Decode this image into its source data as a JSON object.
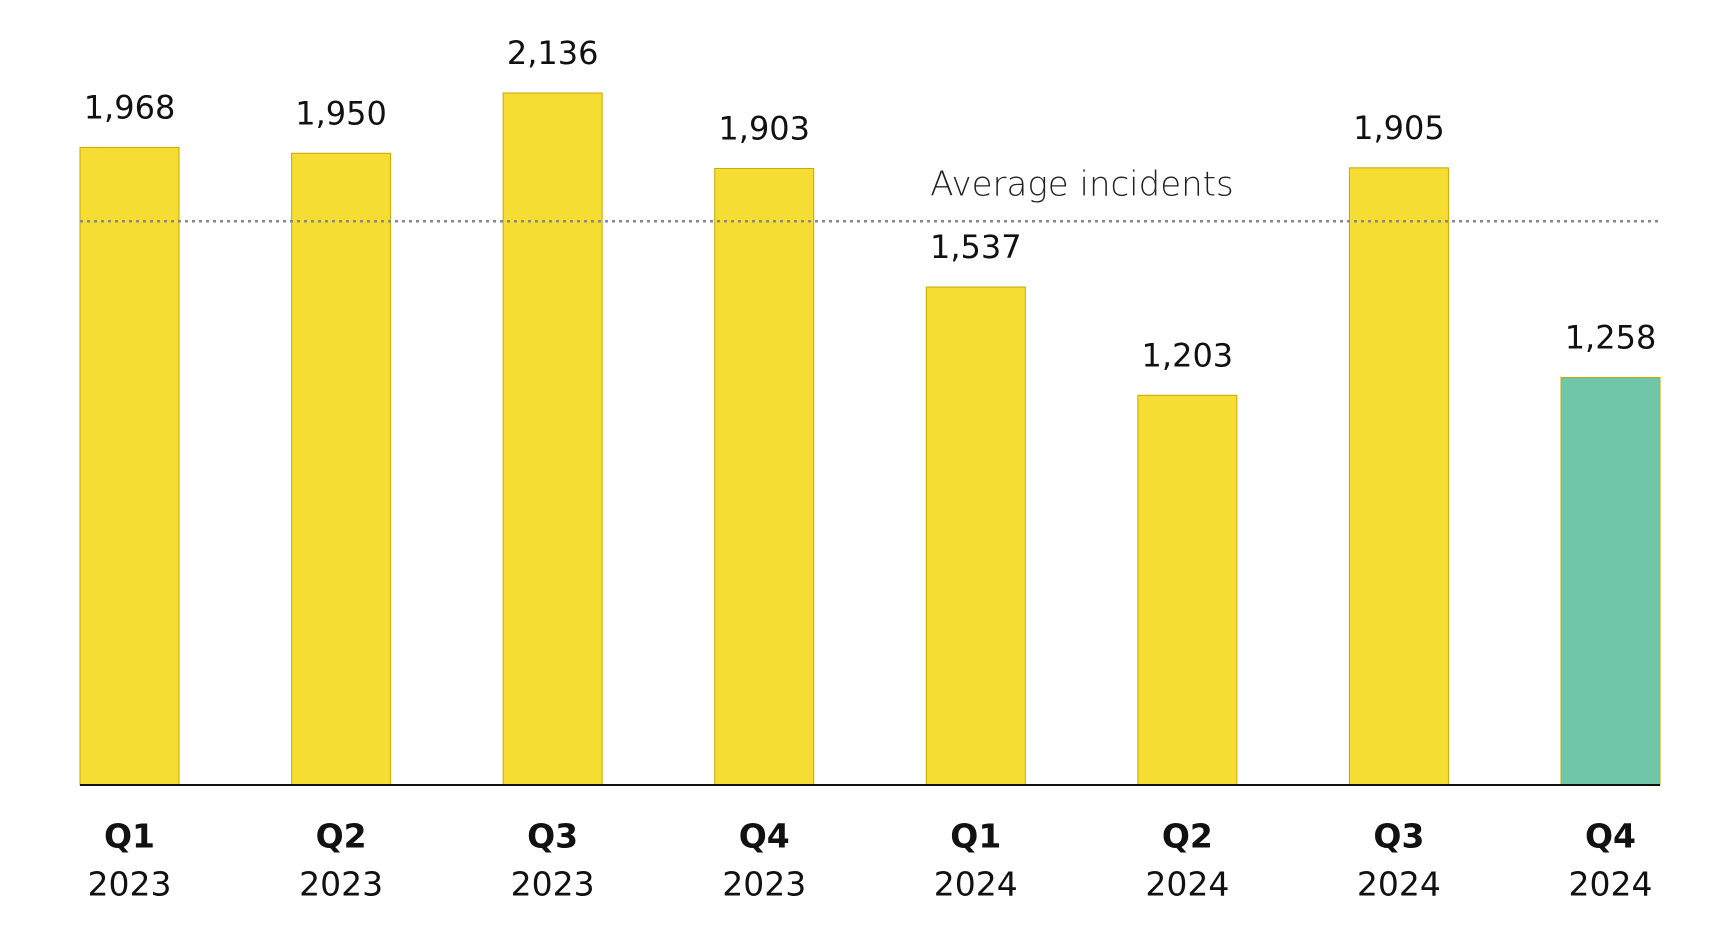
{
  "chart_data": {
    "type": "bar",
    "categories": [
      [
        "Q1",
        "2023"
      ],
      [
        "Q2",
        "2023"
      ],
      [
        "Q3",
        "2023"
      ],
      [
        "Q4",
        "2023"
      ],
      [
        "Q1",
        "2024"
      ],
      [
        "Q2",
        "2024"
      ],
      [
        "Q3",
        "2024"
      ],
      [
        "Q4",
        "2024"
      ]
    ],
    "values": [
      1968,
      1950,
      2136,
      1903,
      1537,
      1203,
      1905,
      1258
    ],
    "value_labels": [
      "1,968",
      "1,950",
      "2,136",
      "1,903",
      "1,537",
      "1,203",
      "1,905",
      "1,258"
    ],
    "colors": [
      "#f5dd33",
      "#f5dd33",
      "#f5dd33",
      "#f5dd33",
      "#f5dd33",
      "#f5dd33",
      "#f5dd33",
      "#70c6a8"
    ],
    "average_line": {
      "label": "Average incidents",
      "value": 1740
    }
  }
}
